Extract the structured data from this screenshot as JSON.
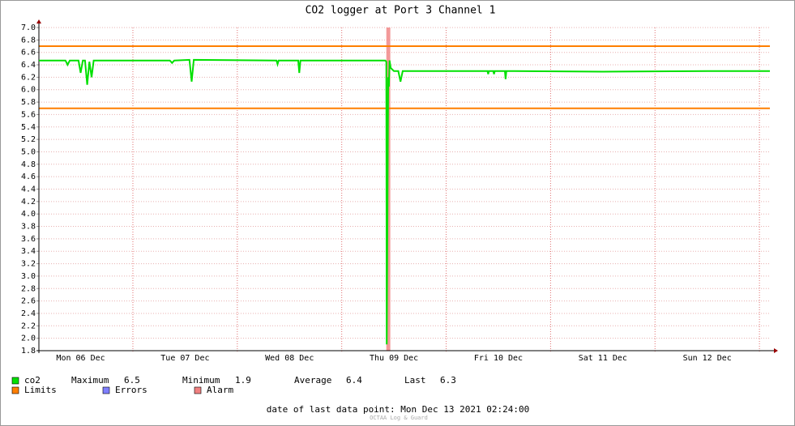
{
  "chart_data": {
    "type": "line",
    "title": "CO2 logger at Port 3 Channel 1",
    "xlim": [
      "2021-12-06T02:24",
      "2021-12-13T02:24"
    ],
    "xticks": [
      {
        "value": "2021-12-06T12:00",
        "label": "Mon 06 Dec"
      },
      {
        "value": "2021-12-07T12:00",
        "label": "Tue 07 Dec"
      },
      {
        "value": "2021-12-08T12:00",
        "label": "Wed 08 Dec"
      },
      {
        "value": "2021-12-09T12:00",
        "label": "Thu 09 Dec"
      },
      {
        "value": "2021-12-10T12:00",
        "label": "Fri 10 Dec"
      },
      {
        "value": "2021-12-11T12:00",
        "label": "Sat 11 Dec"
      },
      {
        "value": "2021-12-12T12:00",
        "label": "Sun 12 Dec"
      }
    ],
    "xgrid": [
      "2021-12-07T00:00",
      "2021-12-08T00:00",
      "2021-12-09T00:00",
      "2021-12-10T00:00",
      "2021-12-11T00:00",
      "2021-12-12T00:00",
      "2021-12-13T00:00"
    ],
    "ylim": [
      1.8,
      7.0
    ],
    "yticks": [
      {
        "value": 1.8,
        "label": "1.8"
      },
      {
        "value": 2.0,
        "label": "2.0"
      },
      {
        "value": 2.2,
        "label": "2.2"
      },
      {
        "value": 2.4,
        "label": "2.4"
      },
      {
        "value": 2.6,
        "label": "2.6"
      },
      {
        "value": 2.8,
        "label": "2.8"
      },
      {
        "value": 3.0,
        "label": "3.0"
      },
      {
        "value": 3.2,
        "label": "3.2"
      },
      {
        "value": 3.4,
        "label": "3.4"
      },
      {
        "value": 3.6,
        "label": "3.6"
      },
      {
        "value": 3.8,
        "label": "3.8"
      },
      {
        "value": 4.0,
        "label": "4.0"
      },
      {
        "value": 4.2,
        "label": "4.2"
      },
      {
        "value": 4.4,
        "label": "4.4"
      },
      {
        "value": 4.6,
        "label": "4.6"
      },
      {
        "value": 4.8,
        "label": "4.8"
      },
      {
        "value": 5.0,
        "label": "5.0"
      },
      {
        "value": 5.2,
        "label": "5.2"
      },
      {
        "value": 5.4,
        "label": "5.4"
      },
      {
        "value": 5.6,
        "label": "5.6"
      },
      {
        "value": 5.8,
        "label": "5.8"
      },
      {
        "value": 6.0,
        "label": "6.0"
      },
      {
        "value": 6.2,
        "label": "6.2"
      },
      {
        "value": 6.4,
        "label": "6.4"
      },
      {
        "value": 6.6,
        "label": "6.6"
      },
      {
        "value": 6.8,
        "label": "6.8"
      },
      {
        "value": 7.0,
        "label": "7.0"
      }
    ],
    "grid": true,
    "series": [
      {
        "name": "co2",
        "color": "#00e000",
        "x": [
          "2021-12-06T02:24",
          "2021-12-06T08:30",
          "2021-12-06T09:00",
          "2021-12-06T09:30",
          "2021-12-06T11:30",
          "2021-12-06T12:00",
          "2021-12-06T12:30",
          "2021-12-06T13:00",
          "2021-12-06T13:30",
          "2021-12-06T14:00",
          "2021-12-06T14:30",
          "2021-12-06T15:00",
          "2021-12-07T08:30",
          "2021-12-07T09:00",
          "2021-12-07T09:30",
          "2021-12-07T13:00",
          "2021-12-07T13:30",
          "2021-12-07T14:00",
          "2021-12-08T09:00",
          "2021-12-08T09:15",
          "2021-12-08T09:30",
          "2021-12-08T14:00",
          "2021-12-08T14:15",
          "2021-12-08T14:30",
          "2021-12-09T10:00",
          "2021-12-09T10:15",
          "2021-12-09T10:20",
          "2021-12-09T10:40",
          "2021-12-09T10:50",
          "2021-12-09T11:00",
          "2021-12-09T11:15",
          "2021-12-09T12:00",
          "2021-12-09T13:00",
          "2021-12-09T13:30",
          "2021-12-09T14:00",
          "2021-12-10T09:30",
          "2021-12-10T09:40",
          "2021-12-10T09:50",
          "2021-12-10T10:50",
          "2021-12-10T11:00",
          "2021-12-10T11:10",
          "2021-12-10T13:30",
          "2021-12-10T13:40",
          "2021-12-10T13:50",
          "2021-12-11T12:00",
          "2021-12-12T12:00",
          "2021-12-13T02:24"
        ],
        "values": [
          6.47,
          6.47,
          6.4,
          6.47,
          6.47,
          6.27,
          6.47,
          6.47,
          6.08,
          6.45,
          6.2,
          6.47,
          6.47,
          6.43,
          6.47,
          6.48,
          6.13,
          6.48,
          6.47,
          6.41,
          6.47,
          6.47,
          6.27,
          6.47,
          6.47,
          6.45,
          1.9,
          6.2,
          6.05,
          6.47,
          6.35,
          6.3,
          6.3,
          6.13,
          6.3,
          6.3,
          6.25,
          6.3,
          6.3,
          6.25,
          6.3,
          6.3,
          6.17,
          6.3,
          6.29,
          6.3,
          6.3
        ]
      }
    ],
    "stats": [
      {
        "label": "Maximum",
        "value": 6.5
      },
      {
        "label": "Minimum",
        "value": 1.9
      },
      {
        "label": "Average",
        "value": 6.4
      },
      {
        "label": "Last",
        "value": 6.3
      }
    ],
    "limits": {
      "name": "Limits",
      "color": "#ff7f00",
      "values": [
        5.7,
        6.7
      ]
    },
    "errors": {
      "name": "Errors",
      "color": "#7f7fff"
    },
    "alarm": {
      "name": "Alarm",
      "color": "#f08080",
      "x": [
        "2021-12-09T10:15",
        "2021-12-09T11:10"
      ]
    },
    "footer": "date of last data point:  Mon Dec 13 2021 02:24:00",
    "credit": "OCTAA Log & Guard"
  }
}
